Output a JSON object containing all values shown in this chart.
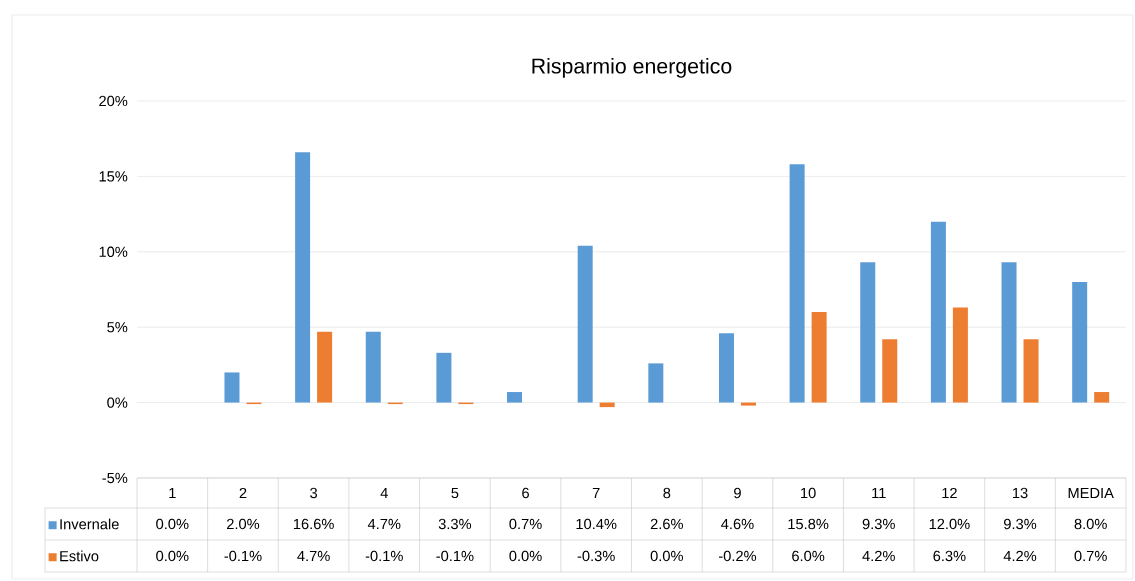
{
  "chart_data": {
    "type": "bar",
    "title": "Risparmio energetico",
    "categories": [
      "1",
      "2",
      "3",
      "4",
      "5",
      "6",
      "7",
      "8",
      "9",
      "10",
      "11",
      "12",
      "13",
      "MEDIA"
    ],
    "series": [
      {
        "name": "Invernale",
        "color": "#5b9bd5",
        "values": [
          0.0,
          2.0,
          16.6,
          4.7,
          3.3,
          0.7,
          10.4,
          2.6,
          4.6,
          15.8,
          9.3,
          12.0,
          9.3,
          8.0
        ],
        "value_labels": [
          "0.0%",
          "2.0%",
          "16.6%",
          "4.7%",
          "3.3%",
          "0.7%",
          "10.4%",
          "2.6%",
          "4.6%",
          "15.8%",
          "9.3%",
          "12.0%",
          "9.3%",
          "8.0%"
        ]
      },
      {
        "name": "Estivo",
        "color": "#ed7d31",
        "values": [
          0.0,
          -0.1,
          4.7,
          -0.1,
          -0.1,
          0.0,
          -0.3,
          0.0,
          -0.2,
          6.0,
          4.2,
          6.3,
          4.2,
          0.7
        ],
        "value_labels": [
          "0.0%",
          "-0.1%",
          "4.7%",
          "-0.1%",
          "-0.1%",
          "0.0%",
          "-0.3%",
          "0.0%",
          "-0.2%",
          "6.0%",
          "4.2%",
          "6.3%",
          "4.2%",
          "0.7%"
        ]
      }
    ],
    "ylim": [
      -5,
      20
    ],
    "yticks": [
      {
        "value": -5,
        "label": "-5%"
      },
      {
        "value": 0,
        "label": "0%"
      },
      {
        "value": 5,
        "label": "5%"
      },
      {
        "value": 10,
        "label": "10%"
      },
      {
        "value": 15,
        "label": "15%"
      },
      {
        "value": 20,
        "label": "20%"
      }
    ],
    "grid": "y",
    "legend": "bottom left"
  }
}
